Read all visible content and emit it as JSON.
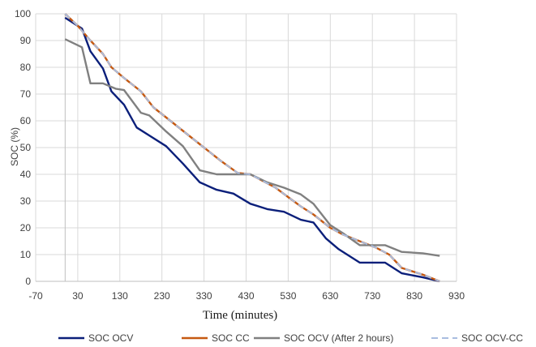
{
  "chart_data": {
    "type": "line",
    "title": "",
    "xlabel": "Time (minutes)",
    "ylabel": "SOC (%)",
    "xlim": [
      -70,
      930
    ],
    "ylim": [
      0,
      100
    ],
    "x_ticks": [
      -70,
      30,
      130,
      230,
      330,
      430,
      530,
      630,
      730,
      830,
      930
    ],
    "y_ticks": [
      0,
      10,
      20,
      30,
      40,
      50,
      60,
      70,
      80,
      90,
      100
    ],
    "grid": true,
    "legend_position": "bottom",
    "series": [
      {
        "name": "SOC OCV",
        "color": "#0b1f7a",
        "dash": "solid",
        "points": [
          [
            0,
            98.5
          ],
          [
            40,
            94.5
          ],
          [
            60,
            86
          ],
          [
            90,
            79.5
          ],
          [
            110,
            71
          ],
          [
            140,
            66
          ],
          [
            170,
            57.5
          ],
          [
            200,
            54.5
          ],
          [
            240,
            50.5
          ],
          [
            280,
            44
          ],
          [
            320,
            37
          ],
          [
            360,
            34.2
          ],
          [
            400,
            32.8
          ],
          [
            440,
            29
          ],
          [
            480,
            27
          ],
          [
            520,
            26
          ],
          [
            560,
            23
          ],
          [
            590,
            22
          ],
          [
            620,
            16
          ],
          [
            650,
            12
          ],
          [
            700,
            7
          ],
          [
            760,
            7
          ],
          [
            800,
            3
          ],
          [
            850,
            1.5
          ],
          [
            890,
            0
          ]
        ]
      },
      {
        "name": "SOC CC",
        "color": "#c65911",
        "dash": "solid",
        "points": [
          [
            0,
            100
          ],
          [
            30,
            95.5
          ],
          [
            60,
            90
          ],
          [
            90,
            85
          ],
          [
            110,
            80
          ],
          [
            140,
            76
          ],
          [
            180,
            71
          ],
          [
            210,
            65
          ],
          [
            250,
            60
          ],
          [
            290,
            55
          ],
          [
            330,
            50
          ],
          [
            370,
            45
          ],
          [
            410,
            40.5
          ],
          [
            440,
            40
          ],
          [
            470,
            37.5
          ],
          [
            500,
            35
          ],
          [
            530,
            31.5
          ],
          [
            560,
            28
          ],
          [
            590,
            25
          ],
          [
            630,
            20
          ],
          [
            660,
            17.5
          ],
          [
            700,
            15
          ],
          [
            740,
            12.5
          ],
          [
            770,
            10
          ],
          [
            800,
            5
          ],
          [
            850,
            2.5
          ],
          [
            890,
            0
          ]
        ]
      },
      {
        "name": "SOC OCV (After 2 hours)",
        "color": "#808080",
        "dash": "solid",
        "points": [
          [
            0,
            90.5
          ],
          [
            40,
            87.5
          ],
          [
            60,
            74
          ],
          [
            90,
            74
          ],
          [
            120,
            72
          ],
          [
            140,
            71.5
          ],
          [
            180,
            63
          ],
          [
            200,
            62
          ],
          [
            240,
            56
          ],
          [
            280,
            50.5
          ],
          [
            320,
            41.5
          ],
          [
            360,
            40
          ],
          [
            400,
            40
          ],
          [
            440,
            40
          ],
          [
            480,
            37
          ],
          [
            520,
            35
          ],
          [
            560,
            32.5
          ],
          [
            590,
            29
          ],
          [
            630,
            21
          ],
          [
            660,
            18
          ],
          [
            700,
            13.5
          ],
          [
            760,
            13.5
          ],
          [
            800,
            11
          ],
          [
            850,
            10.5
          ],
          [
            890,
            9.5
          ]
        ]
      },
      {
        "name": "SOC OCV-CC",
        "color": "#a9bde0",
        "dash": "dashed",
        "points": [
          [
            0,
            100
          ],
          [
            30,
            95.5
          ],
          [
            60,
            90
          ],
          [
            90,
            85
          ],
          [
            110,
            80
          ],
          [
            140,
            76
          ],
          [
            180,
            71
          ],
          [
            210,
            65
          ],
          [
            250,
            60
          ],
          [
            290,
            55
          ],
          [
            330,
            50
          ],
          [
            370,
            45
          ],
          [
            410,
            40.5
          ],
          [
            440,
            40
          ],
          [
            470,
            37.5
          ],
          [
            500,
            35
          ],
          [
            530,
            31.5
          ],
          [
            560,
            28
          ],
          [
            590,
            25
          ],
          [
            630,
            20
          ],
          [
            660,
            17.5
          ],
          [
            700,
            15
          ],
          [
            740,
            12.5
          ],
          [
            770,
            10
          ],
          [
            800,
            5
          ],
          [
            850,
            2.5
          ],
          [
            890,
            0
          ]
        ]
      }
    ]
  }
}
